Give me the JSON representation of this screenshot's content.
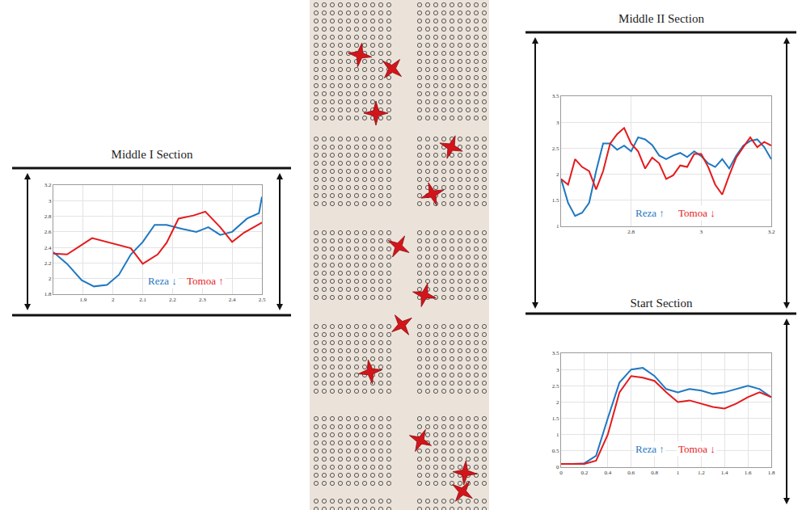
{
  "chart_data": [
    {
      "type": "line",
      "title": "Middle I Section",
      "xlim": [
        1.8,
        2.5
      ],
      "xticks": [
        1.9,
        2,
        2.1,
        2.2,
        2.3,
        2.4,
        2.5
      ],
      "ylim": [
        1.8,
        3.2
      ],
      "yticks": [
        1.8,
        2,
        2.2,
        2.4,
        2.6,
        2.8,
        3,
        3.2
      ],
      "grid": true,
      "series": [
        {
          "name": "Reza ↓",
          "color": "#1f78c1",
          "x": [
            1.8,
            1.846,
            1.895,
            1.936,
            1.98,
            2.02,
            2.06,
            2.1,
            2.14,
            2.18,
            2.23,
            2.28,
            2.32,
            2.36,
            2.4,
            2.45,
            2.49,
            2.5
          ],
          "values": [
            2.34,
            2.19,
            1.98,
            1.9,
            1.92,
            2.05,
            2.31,
            2.47,
            2.69,
            2.69,
            2.64,
            2.6,
            2.66,
            2.56,
            2.6,
            2.77,
            2.84,
            3.05
          ]
        },
        {
          "name": "Tomoa ↑",
          "color": "#e41a1c",
          "x": [
            1.8,
            1.846,
            1.93,
            1.98,
            2.06,
            2.1,
            2.15,
            2.18,
            2.22,
            2.27,
            2.31,
            2.36,
            2.4,
            2.44,
            2.5
          ],
          "values": [
            2.32,
            2.31,
            2.52,
            2.47,
            2.39,
            2.19,
            2.31,
            2.46,
            2.77,
            2.81,
            2.86,
            2.66,
            2.47,
            2.59,
            2.72
          ]
        }
      ]
    },
    {
      "type": "line",
      "title": "Middle II Section",
      "xlim": [
        2.6,
        3.2
      ],
      "xticks": [
        2.8,
        3,
        3.2
      ],
      "ylim": [
        1,
        3.5
      ],
      "yticks": [
        1,
        1.5,
        2,
        2.5,
        3,
        3.5
      ],
      "grid": true,
      "series": [
        {
          "name": "Reza ↑",
          "color": "#1f78c1",
          "x": [
            2.6,
            2.62,
            2.64,
            2.66,
            2.68,
            2.7,
            2.72,
            2.74,
            2.76,
            2.78,
            2.8,
            2.82,
            2.84,
            2.86,
            2.88,
            2.9,
            2.92,
            2.94,
            2.96,
            2.98,
            3,
            3.02,
            3.04,
            3.06,
            3.08,
            3.1,
            3.12,
            3.14,
            3.16,
            3.18,
            3.2
          ],
          "values": [
            1.91,
            1.45,
            1.2,
            1.26,
            1.45,
            2.06,
            2.59,
            2.59,
            2.47,
            2.55,
            2.44,
            2.71,
            2.67,
            2.56,
            2.36,
            2.29,
            2.36,
            2.41,
            2.33,
            2.44,
            2.35,
            2.21,
            2.14,
            2.29,
            2.11,
            2.36,
            2.55,
            2.64,
            2.67,
            2.52,
            2.29
          ]
        },
        {
          "name": "Tomoa ↓",
          "color": "#e41a1c",
          "x": [
            2.6,
            2.62,
            2.64,
            2.66,
            2.68,
            2.7,
            2.72,
            2.74,
            2.76,
            2.78,
            2.8,
            2.82,
            2.84,
            2.86,
            2.88,
            2.9,
            2.92,
            2.94,
            2.96,
            2.98,
            3,
            3.02,
            3.04,
            3.06,
            3.08,
            3.1,
            3.12,
            3.14,
            3.16,
            3.18,
            3.2
          ],
          "values": [
            1.91,
            1.8,
            2.29,
            2.14,
            2.06,
            1.71,
            2.06,
            2.59,
            2.77,
            2.89,
            2.59,
            2.44,
            2.11,
            2.32,
            2.21,
            1.91,
            1.98,
            2.17,
            2.14,
            2.39,
            2.39,
            2.14,
            1.8,
            1.61,
            1.98,
            2.32,
            2.52,
            2.71,
            2.52,
            2.62,
            2.55
          ]
        }
      ]
    },
    {
      "type": "line",
      "title": "Start Section",
      "xlim": [
        0,
        1.8
      ],
      "xticks": [
        0,
        0.2,
        0.4,
        0.6,
        0.8,
        1,
        1.2,
        1.4,
        1.6,
        1.8
      ],
      "ylim": [
        0,
        3.5
      ],
      "yticks": [
        0,
        0.5,
        1,
        1.5,
        2,
        2.5,
        3,
        3.5
      ],
      "grid": true,
      "series": [
        {
          "name": "Reza ↑",
          "color": "#1f78c1",
          "x": [
            0,
            0.1,
            0.2,
            0.3,
            0.4,
            0.5,
            0.6,
            0.7,
            0.8,
            0.9,
            1,
            1.1,
            1.2,
            1.3,
            1.4,
            1.5,
            1.6,
            1.7,
            1.8
          ],
          "values": [
            0.1,
            0.1,
            0.12,
            0.35,
            1.5,
            2.6,
            3.0,
            3.05,
            2.8,
            2.4,
            2.3,
            2.4,
            2.35,
            2.25,
            2.3,
            2.4,
            2.5,
            2.4,
            2.15
          ]
        },
        {
          "name": "Tomoa ↓",
          "color": "#e41a1c",
          "x": [
            0,
            0.1,
            0.2,
            0.3,
            0.4,
            0.5,
            0.6,
            0.7,
            0.8,
            0.9,
            1,
            1.1,
            1.2,
            1.3,
            1.4,
            1.5,
            1.6,
            1.7,
            1.8
          ],
          "values": [
            0.1,
            0.1,
            0.1,
            0.2,
            1.0,
            2.3,
            2.8,
            2.75,
            2.65,
            2.3,
            2.0,
            2.05,
            1.95,
            1.85,
            1.8,
            1.95,
            2.15,
            2.3,
            2.15
          ]
        }
      ]
    }
  ]
}
